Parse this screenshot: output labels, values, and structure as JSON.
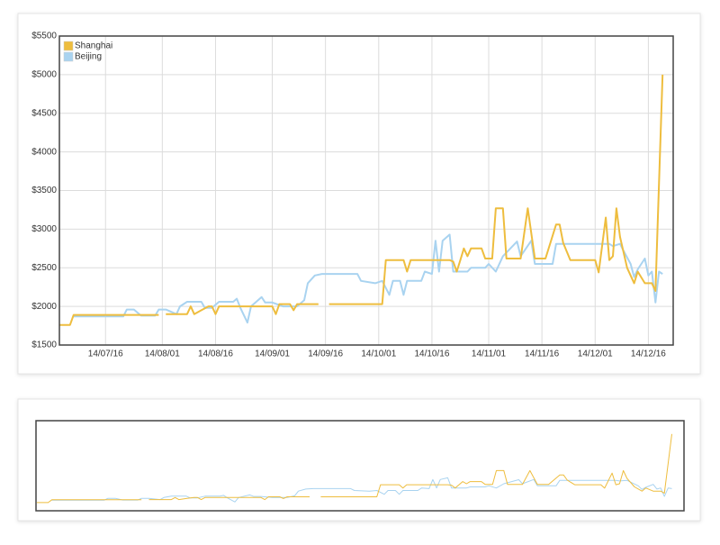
{
  "chart_data": {
    "type": "line",
    "xlim": [
      "2014-07-03",
      "2014-12-23"
    ],
    "xticks": [
      {
        "value": "2014-07-16",
        "label": "14/07/16"
      },
      {
        "value": "2014-08-01",
        "label": "14/08/01"
      },
      {
        "value": "2014-08-16",
        "label": "14/08/16"
      },
      {
        "value": "2014-09-01",
        "label": "14/09/01"
      },
      {
        "value": "2014-09-16",
        "label": "14/09/16"
      },
      {
        "value": "2014-10-01",
        "label": "14/10/01"
      },
      {
        "value": "2014-10-16",
        "label": "14/10/16"
      },
      {
        "value": "2014-11-01",
        "label": "14/11/01"
      },
      {
        "value": "2014-11-16",
        "label": "14/11/16"
      },
      {
        "value": "2014-12-01",
        "label": "14/12/01"
      },
      {
        "value": "2014-12-16",
        "label": "14/12/16"
      }
    ],
    "ylim": [
      1500,
      5500
    ],
    "yticks": [
      {
        "value": 1500,
        "label": "$1500"
      },
      {
        "value": 2000,
        "label": "$2000"
      },
      {
        "value": 2500,
        "label": "$2500"
      },
      {
        "value": 3000,
        "label": "$3000"
      },
      {
        "value": 3500,
        "label": "$3500"
      },
      {
        "value": 4000,
        "label": "$4000"
      },
      {
        "value": 4500,
        "label": "$4500"
      },
      {
        "value": 5000,
        "label": "$5000"
      },
      {
        "value": 5500,
        "label": "$5500"
      }
    ],
    "grid": true,
    "legend": "top-left",
    "series": [
      {
        "name": "Shanghai",
        "color": "#eebd3e",
        "x": [
          "2014-07-03",
          "2014-07-06",
          "2014-07-07",
          "2014-07-31",
          "2014-08-01",
          "2014-08-02",
          "2014-08-08",
          "2014-08-09",
          "2014-08-10",
          "2014-08-12",
          "2014-08-14",
          "2014-08-15",
          "2014-08-16",
          "2014-08-17",
          "2014-08-31",
          "2014-09-01",
          "2014-09-02",
          "2014-09-03",
          "2014-09-06",
          "2014-09-07",
          "2014-09-08",
          "2014-09-14",
          "2014-09-16",
          "2014-09-17",
          "2014-10-02",
          "2014-10-03",
          "2014-10-08",
          "2014-10-09",
          "2014-10-10",
          "2014-10-21",
          "2014-10-22",
          "2014-10-23",
          "2014-10-24",
          "2014-10-25",
          "2014-10-26",
          "2014-10-27",
          "2014-10-30",
          "2014-10-31",
          "2014-11-02",
          "2014-11-03",
          "2014-11-05",
          "2014-11-06",
          "2014-11-10",
          "2014-11-12",
          "2014-11-14",
          "2014-11-17",
          "2014-11-20",
          "2014-11-21",
          "2014-11-22",
          "2014-11-24",
          "2014-12-01",
          "2014-12-02",
          "2014-12-04",
          "2014-12-05",
          "2014-12-06",
          "2014-12-07",
          "2014-12-08",
          "2014-12-10",
          "2014-12-12",
          "2014-12-13",
          "2014-12-15",
          "2014-12-17",
          "2014-12-18",
          "2014-12-20"
        ],
        "values": [
          1760,
          1760,
          1890,
          1890,
          null,
          1900,
          1900,
          2000,
          1900,
          1950,
          2000,
          2000,
          1900,
          2000,
          2000,
          2000,
          1900,
          2030,
          2030,
          1950,
          2030,
          2030,
          null,
          2030,
          2030,
          2600,
          2600,
          2450,
          2600,
          2600,
          2580,
          2450,
          2600,
          2750,
          2650,
          2750,
          2750,
          2620,
          2620,
          3270,
          3270,
          2620,
          2620,
          3270,
          2620,
          2620,
          3060,
          3060,
          2820,
          2600,
          2600,
          2440,
          3150,
          2600,
          2650,
          3270,
          2900,
          2500,
          2300,
          2450,
          2300,
          2300,
          2200,
          5000
        ]
      },
      {
        "name": "Beijing",
        "color": "#a9d3f0",
        "x": [
          "2014-07-07",
          "2014-07-21",
          "2014-07-22",
          "2014-07-24",
          "2014-07-26",
          "2014-07-30",
          "2014-07-31",
          "2014-08-02",
          "2014-08-05",
          "2014-08-06",
          "2014-08-08",
          "2014-08-12",
          "2014-08-13",
          "2014-08-15",
          "2014-08-17",
          "2014-08-21",
          "2014-08-22",
          "2014-08-23",
          "2014-08-25",
          "2014-08-26",
          "2014-08-29",
          "2014-08-30",
          "2014-09-01",
          "2014-09-04",
          "2014-09-08",
          "2014-09-10",
          "2014-09-11",
          "2014-09-13",
          "2014-09-15",
          "2014-09-25",
          "2014-09-26",
          "2014-09-30",
          "2014-10-02",
          "2014-10-04",
          "2014-10-05",
          "2014-10-07",
          "2014-10-08",
          "2014-10-09",
          "2014-10-13",
          "2014-10-14",
          "2014-10-16",
          "2014-10-17",
          "2014-10-18",
          "2014-10-19",
          "2014-10-21",
          "2014-10-22",
          "2014-10-26",
          "2014-10-27",
          "2014-10-31",
          "2014-11-01",
          "2014-11-03",
          "2014-11-05",
          "2014-11-09",
          "2014-11-10",
          "2014-11-13",
          "2014-11-14",
          "2014-11-19",
          "2014-11-20",
          "2014-12-05",
          "2014-12-06",
          "2014-12-08",
          "2014-12-09",
          "2014-12-11",
          "2014-12-12",
          "2014-12-13",
          "2014-12-15",
          "2014-12-16",
          "2014-12-17",
          "2014-12-18",
          "2014-12-19",
          "2014-12-20"
        ],
        "values": [
          1870,
          1870,
          1960,
          1960,
          1880,
          1880,
          1960,
          1960,
          1900,
          2000,
          2060,
          2060,
          1980,
          1980,
          2060,
          2060,
          2100,
          1980,
          1790,
          2000,
          2120,
          2050,
          2050,
          2000,
          2000,
          2080,
          2300,
          2400,
          2420,
          2420,
          2330,
          2300,
          2330,
          2150,
          2330,
          2330,
          2150,
          2330,
          2330,
          2450,
          2420,
          2850,
          2450,
          2850,
          2930,
          2450,
          2450,
          2500,
          2500,
          2550,
          2450,
          2650,
          2840,
          2650,
          2850,
          2550,
          2550,
          2810,
          2810,
          2780,
          2810,
          2720,
          2550,
          2380,
          2480,
          2620,
          2400,
          2450,
          2050,
          2450,
          2420
        ]
      }
    ]
  }
}
